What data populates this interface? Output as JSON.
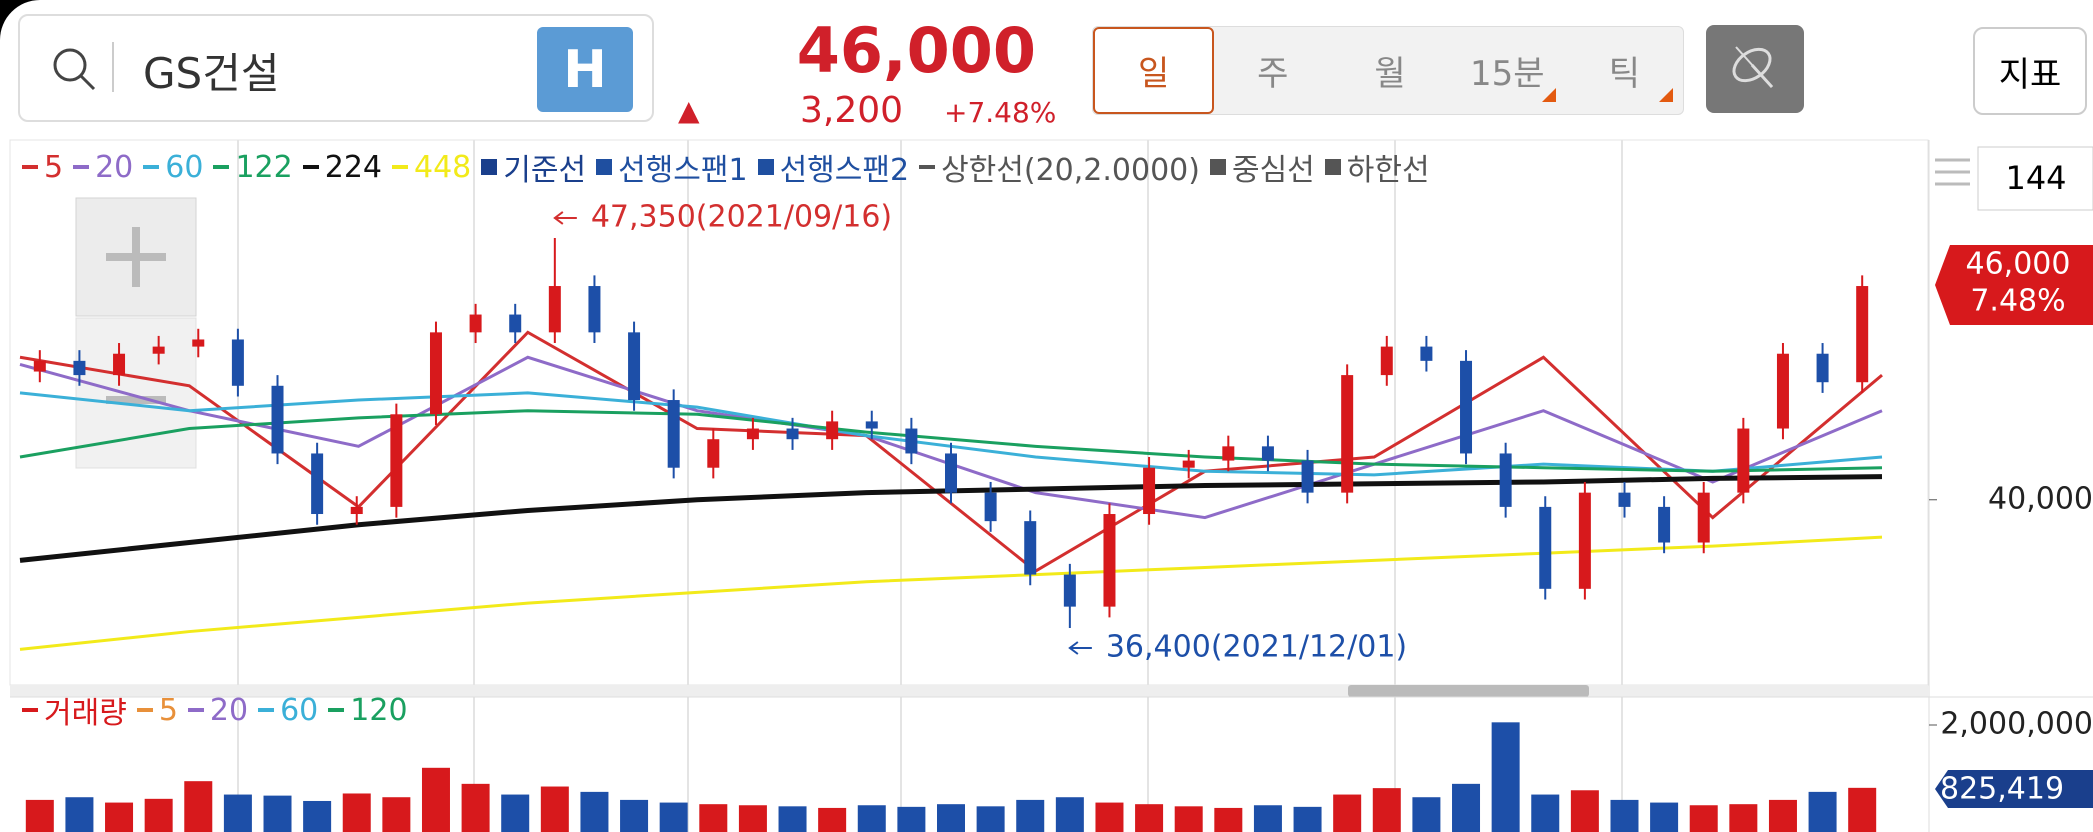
{
  "header": {
    "stock_name": "GS건설",
    "badge": "H",
    "price": "46,000",
    "change_arrow": "▲",
    "change": "3,200",
    "change_pct": "+7.48%",
    "periods": [
      "일",
      "주",
      "월",
      "15분",
      "틱"
    ],
    "indicator_button": "지표"
  },
  "chart_data": [
    {
      "type": "candlestick",
      "up_color": "#d7191c",
      "down_color": "#1d4fa8",
      "candles": [
        [
          43600,
          44200,
          43300,
          43900
        ],
        [
          43900,
          44200,
          43200,
          43500
        ],
        [
          43500,
          44400,
          43200,
          44100
        ],
        [
          44100,
          44600,
          43800,
          44300
        ],
        [
          44300,
          44800,
          44000,
          44500
        ],
        [
          44500,
          44800,
          42900,
          43200
        ],
        [
          43200,
          43500,
          41000,
          41300
        ],
        [
          41300,
          41600,
          39300,
          39600
        ],
        [
          39600,
          40100,
          39300,
          39800
        ],
        [
          39800,
          42700,
          39500,
          42400
        ],
        [
          42400,
          45000,
          42100,
          44700
        ],
        [
          44700,
          45500,
          44400,
          45200
        ],
        [
          45200,
          45500,
          44400,
          44700
        ],
        [
          44700,
          47350,
          44400,
          46000
        ],
        [
          46000,
          46300,
          44400,
          44700
        ],
        [
          44700,
          45000,
          42500,
          42800
        ],
        [
          42800,
          43100,
          40600,
          40900
        ],
        [
          40900,
          42000,
          40600,
          41700
        ],
        [
          41700,
          42300,
          41400,
          42000
        ],
        [
          42000,
          42300,
          41400,
          41700
        ],
        [
          41700,
          42500,
          41400,
          42200
        ],
        [
          42200,
          42500,
          41700,
          42000
        ],
        [
          42000,
          42300,
          41000,
          41300
        ],
        [
          41300,
          41600,
          39900,
          40200
        ],
        [
          40200,
          40500,
          39100,
          39400
        ],
        [
          39400,
          39700,
          37600,
          37900
        ],
        [
          37900,
          38200,
          36400,
          37000
        ],
        [
          37000,
          39900,
          36700,
          39600
        ],
        [
          39600,
          41200,
          39300,
          40900
        ],
        [
          40900,
          41400,
          40600,
          41100
        ],
        [
          41100,
          41800,
          40800,
          41500
        ],
        [
          41500,
          41800,
          40800,
          41100
        ],
        [
          41100,
          41400,
          39900,
          40200
        ],
        [
          40200,
          43800,
          39900,
          43500
        ],
        [
          43500,
          44600,
          43200,
          44300
        ],
        [
          44300,
          44600,
          43600,
          43900
        ],
        [
          43900,
          44200,
          41000,
          41300
        ],
        [
          41300,
          41600,
          39500,
          39800
        ],
        [
          39800,
          40100,
          37200,
          37500
        ],
        [
          37500,
          40500,
          37200,
          40200
        ],
        [
          40200,
          40500,
          39500,
          39800
        ],
        [
          39800,
          40100,
          38500,
          38800
        ],
        [
          38800,
          40500,
          38500,
          40200
        ],
        [
          40200,
          42300,
          39900,
          42000
        ],
        [
          42000,
          44400,
          41700,
          44100
        ],
        [
          44100,
          44400,
          43000,
          43300
        ],
        [
          43300,
          46300,
          43000,
          46000
        ]
      ],
      "series": [
        {
          "name": "5",
          "color": "#d32f2f",
          "values": [
            44000,
            43200,
            39800,
            44700,
            42000,
            41800,
            38000,
            40800,
            41200,
            44000,
            39500,
            43500
          ]
        },
        {
          "name": "20",
          "color": "#8e6bc8",
          "values": [
            43800,
            42500,
            41500,
            44000,
            42500,
            41800,
            40200,
            39500,
            41000,
            42500,
            40500,
            42500
          ]
        },
        {
          "name": "60",
          "color": "#3bb0d8",
          "values": [
            43000,
            42500,
            42800,
            43000,
            42600,
            41800,
            41200,
            40800,
            40700,
            41000,
            40800,
            41200
          ]
        },
        {
          "name": "122",
          "color": "#1aa060",
          "values": [
            41200,
            42000,
            42300,
            42500,
            42400,
            41900,
            41500,
            41200,
            41000,
            40900,
            40800,
            40900
          ]
        },
        {
          "name": "224",
          "color": "#111111",
          "values": [
            38300,
            38800,
            39300,
            39700,
            40000,
            40200,
            40300,
            40400,
            40450,
            40500,
            40600,
            40650
          ]
        },
        {
          "name": "448",
          "color": "#f2ea1a",
          "values": [
            35800,
            36300,
            36700,
            37100,
            37400,
            37700,
            37900,
            38100,
            38300,
            38500,
            38700,
            38950
          ]
        }
      ],
      "indicators": [
        {
          "name": "기준선",
          "color": "#1a3f8c"
        },
        {
          "name": "선행스팬1",
          "color": "#1f4fa0"
        },
        {
          "name": "선행스팬2",
          "color": "#1f4fa0"
        },
        {
          "name": "상한선(20,2.0000)",
          "color": "#555555"
        },
        {
          "name": "중심선",
          "color": "#555555"
        },
        {
          "name": "하한선",
          "color": "#555555"
        }
      ],
      "ylim": [
        34800,
        50100
      ],
      "yticks": [
        {
          "value": 40000,
          "label": "40,000"
        }
      ],
      "annotations": [
        {
          "text": "47,350(2021/09/16)",
          "color": "#d32f2f"
        },
        {
          "text": "36,400(2021/12/01)",
          "color": "#1d4fa8"
        }
      ],
      "last_price": {
        "price": "46,000",
        "change_pct": "7.48%"
      }
    },
    {
      "type": "bar",
      "series": [
        {
          "name": "거래량",
          "color": "#d7191c",
          "values": [
            600000,
            650000,
            550000,
            620000,
            950000,
            700000,
            680000,
            580000,
            720000,
            650000,
            1200000,
            900000,
            700000,
            850000,
            750000,
            600000,
            550000,
            520000,
            500000,
            480000,
            450000,
            500000,
            470000,
            520000,
            480000,
            600000,
            650000,
            550000,
            520000,
            480000,
            450000,
            500000,
            470000,
            700000,
            820000,
            650000,
            900000,
            2050000,
            700000,
            780000,
            600000,
            550000,
            500000,
            520000,
            600000,
            750000,
            825419
          ]
        }
      ],
      "moving_averages": [
        {
          "name": "5",
          "color": "#e8903a"
        },
        {
          "name": "20",
          "color": "#8e6bc8"
        },
        {
          "name": "60",
          "color": "#3bb0d8"
        },
        {
          "name": "120",
          "color": "#1aa060"
        }
      ],
      "ylim": [
        0,
        2000000
      ],
      "yticks": [
        {
          "value": 2000000,
          "label": "2,000,000"
        }
      ],
      "last_label": "825,419"
    }
  ],
  "side": {
    "period_count": "144"
  }
}
